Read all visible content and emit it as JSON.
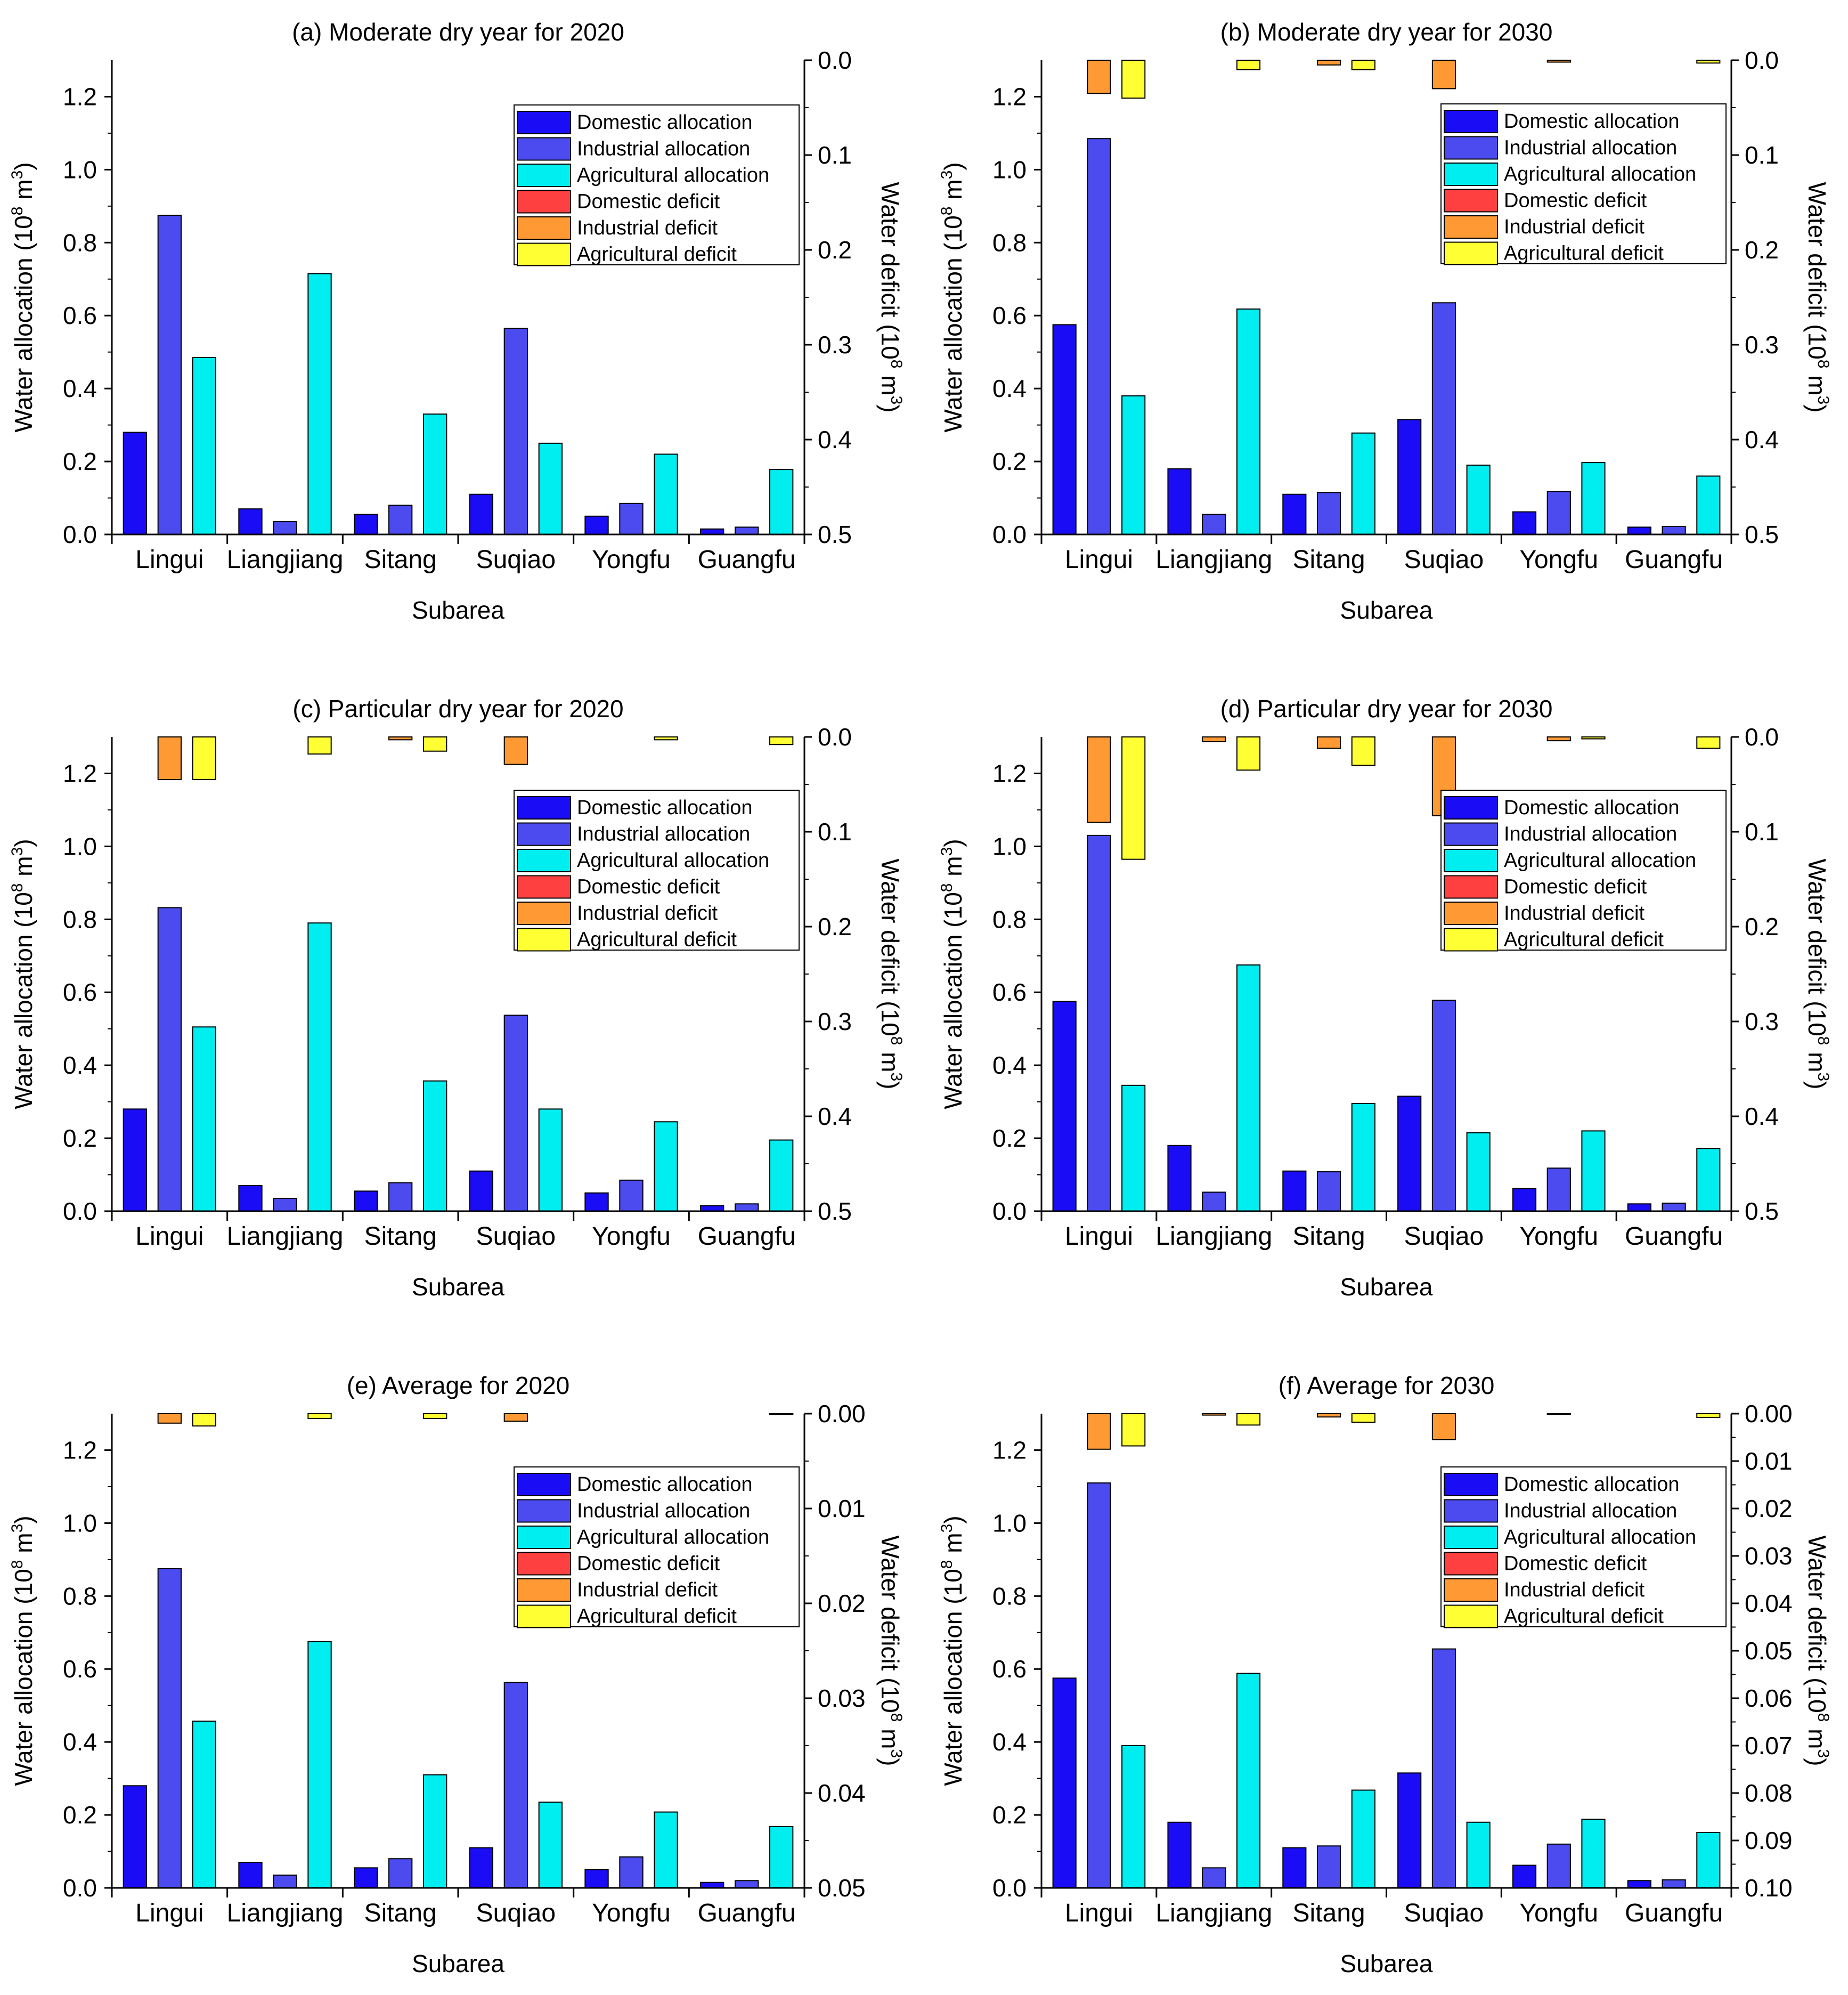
{
  "chart_data": [
    {
      "type": "bar",
      "panel": "a",
      "title": "(a) Moderate dry year for 2020",
      "xlabel": "Subarea",
      "ylabel": "Water allocation (10",
      "ylabel_sup": "8",
      "ylabel_end": " m",
      "ylabel_sup2": "3",
      "ylabel_close": ")",
      "y2label": "Water deficit (10",
      "y2label_sup": "8",
      "y2label_end": " m",
      "y2label_sup2": "3",
      "y2label_close": ")",
      "ylim": [
        0,
        1.3
      ],
      "yticks": [
        "0.0",
        "0.2",
        "0.4",
        "0.6",
        "0.8",
        "1.0",
        "1.2"
      ],
      "y2lim": [
        0,
        0.5
      ],
      "y2ticks": [
        "0.0",
        "0.1",
        "0.2",
        "0.3",
        "0.4",
        "0.5"
      ],
      "categories": [
        "Lingui",
        "Liangjiang",
        "Sitang",
        "Suqiao",
        "Yongfu",
        "Guangfu"
      ],
      "allocation_series": [
        {
          "name": "Domestic allocation",
          "color": "#1a0df5",
          "values": [
            0.28,
            0.07,
            0.055,
            0.11,
            0.05,
            0.015
          ]
        },
        {
          "name": "Industrial allocation",
          "color": "#4b4bf0",
          "values": [
            0.875,
            0.035,
            0.08,
            0.565,
            0.085,
            0.02
          ]
        },
        {
          "name": "Agricultural allocation",
          "color": "#00eef0",
          "values": [
            0.485,
            0.715,
            0.33,
            0.25,
            0.22,
            0.178
          ]
        }
      ],
      "deficit_series": [
        {
          "name": "Domestic deficit",
          "color": "#ff4040",
          "values": [
            0,
            0,
            0,
            0,
            0,
            0
          ]
        },
        {
          "name": "Industrial deficit",
          "color": "#ff9933",
          "values": [
            0,
            0,
            0,
            0,
            0,
            0
          ]
        },
        {
          "name": "Agricultural deficit",
          "color": "#ffff33",
          "values": [
            0,
            0,
            0,
            0,
            0,
            0
          ]
        }
      ],
      "legend_location": "top-right"
    },
    {
      "type": "bar",
      "panel": "b",
      "title": "(b) Moderate dry year for 2030",
      "xlabel": "Subarea",
      "ylabel": "Water allocation (10",
      "ylabel_sup": "8",
      "ylabel_end": " m",
      "ylabel_sup2": "3",
      "ylabel_close": ")",
      "y2label": "Water deficit (10",
      "y2label_sup": "8",
      "y2label_end": " m",
      "y2label_sup2": "3",
      "y2label_close": ")",
      "ylim": [
        0,
        1.3
      ],
      "yticks": [
        "0.0",
        "0.2",
        "0.4",
        "0.6",
        "0.8",
        "1.0",
        "1.2"
      ],
      "y2lim": [
        0,
        0.5
      ],
      "y2ticks": [
        "0.0",
        "0.1",
        "0.2",
        "0.3",
        "0.4",
        "0.5"
      ],
      "categories": [
        "Lingui",
        "Liangjiang",
        "Sitang",
        "Suqiao",
        "Yongfu",
        "Guangfu"
      ],
      "allocation_series": [
        {
          "name": "Domestic allocation",
          "color": "#1a0df5",
          "values": [
            0.575,
            0.18,
            0.11,
            0.315,
            0.062,
            0.02
          ]
        },
        {
          "name": "Industrial allocation",
          "color": "#4b4bf0",
          "values": [
            1.085,
            0.055,
            0.115,
            0.635,
            0.118,
            0.022
          ]
        },
        {
          "name": "Agricultural allocation",
          "color": "#00eef0",
          "values": [
            0.38,
            0.618,
            0.278,
            0.19,
            0.197,
            0.16
          ]
        }
      ],
      "deficit_series": [
        {
          "name": "Domestic deficit",
          "color": "#ff4040",
          "values": [
            0,
            0,
            0,
            0,
            0,
            0
          ]
        },
        {
          "name": "Industrial deficit",
          "color": "#ff9933",
          "values": [
            0.035,
            0,
            0.005,
            0.03,
            0.002,
            0
          ]
        },
        {
          "name": "Agricultural deficit",
          "color": "#ffff33",
          "values": [
            0.04,
            0.01,
            0.01,
            0,
            0,
            0.003
          ]
        }
      ],
      "legend_location": "top-right"
    },
    {
      "type": "bar",
      "panel": "c",
      "title": "(c) Particular dry year for 2020",
      "xlabel": "Subarea",
      "ylabel": "Water allocation (10",
      "ylabel_sup": "8",
      "ylabel_end": " m",
      "ylabel_sup2": "3",
      "ylabel_close": ")",
      "y2label": "Water deficit (10",
      "y2label_sup": "8",
      "y2label_end": " m",
      "y2label_sup2": "3",
      "y2label_close": ")",
      "ylim": [
        0,
        1.3
      ],
      "yticks": [
        "0.0",
        "0.2",
        "0.4",
        "0.6",
        "0.8",
        "1.0",
        "1.2"
      ],
      "y2lim": [
        0,
        0.5
      ],
      "y2ticks": [
        "0.0",
        "0.1",
        "0.2",
        "0.3",
        "0.4",
        "0.5"
      ],
      "categories": [
        "Lingui",
        "Liangjiang",
        "Sitang",
        "Suqiao",
        "Yongfu",
        "Guangfu"
      ],
      "allocation_series": [
        {
          "name": "Domestic allocation",
          "color": "#1a0df5",
          "values": [
            0.28,
            0.07,
            0.055,
            0.11,
            0.05,
            0.015
          ]
        },
        {
          "name": "Industrial allocation",
          "color": "#4b4bf0",
          "values": [
            0.832,
            0.035,
            0.078,
            0.537,
            0.085,
            0.02
          ]
        },
        {
          "name": "Agricultural allocation",
          "color": "#00eef0",
          "values": [
            0.505,
            0.79,
            0.357,
            0.28,
            0.245,
            0.195
          ]
        }
      ],
      "deficit_series": [
        {
          "name": "Domestic deficit",
          "color": "#ff4040",
          "values": [
            0,
            0,
            0,
            0,
            0,
            0
          ]
        },
        {
          "name": "Industrial deficit",
          "color": "#ff9933",
          "values": [
            0.045,
            0,
            0.003,
            0.029,
            0,
            0
          ]
        },
        {
          "name": "Agricultural deficit",
          "color": "#ffff33",
          "values": [
            0.045,
            0.018,
            0.015,
            0,
            0.003,
            0.008
          ]
        }
      ],
      "legend_location": "top-right"
    },
    {
      "type": "bar",
      "panel": "d",
      "title": "(d) Particular dry year for 2030",
      "xlabel": "Subarea",
      "ylabel": "Water allocation (10",
      "ylabel_sup": "8",
      "ylabel_end": " m",
      "ylabel_sup2": "3",
      "ylabel_close": ")",
      "y2label": "Water deficit (10",
      "y2label_sup": "8",
      "y2label_end": " m",
      "y2label_sup2": "3",
      "y2label_close": ")",
      "ylim": [
        0,
        1.3
      ],
      "yticks": [
        "0.0",
        "0.2",
        "0.4",
        "0.6",
        "0.8",
        "1.0",
        "1.2"
      ],
      "y2lim": [
        0,
        0.5
      ],
      "y2ticks": [
        "0.0",
        "0.1",
        "0.2",
        "0.3",
        "0.4",
        "0.5"
      ],
      "categories": [
        "Lingui",
        "Liangjiang",
        "Sitang",
        "Suqiao",
        "Yongfu",
        "Guangfu"
      ],
      "allocation_series": [
        {
          "name": "Domestic allocation",
          "color": "#1a0df5",
          "values": [
            0.575,
            0.18,
            0.11,
            0.315,
            0.062,
            0.02
          ]
        },
        {
          "name": "Industrial allocation",
          "color": "#4b4bf0",
          "values": [
            1.03,
            0.052,
            0.108,
            0.578,
            0.118,
            0.022
          ]
        },
        {
          "name": "Agricultural allocation",
          "color": "#00eef0",
          "values": [
            0.345,
            0.675,
            0.295,
            0.215,
            0.22,
            0.172
          ]
        }
      ],
      "deficit_series": [
        {
          "name": "Domestic deficit",
          "color": "#ff4040",
          "values": [
            0,
            0,
            0,
            0,
            0,
            0
          ]
        },
        {
          "name": "Industrial deficit",
          "color": "#ff9933",
          "values": [
            0.09,
            0.005,
            0.012,
            0.083,
            0.004,
            0
          ]
        },
        {
          "name": "Agricultural deficit",
          "color": "#ffff33",
          "values": [
            0.129,
            0.035,
            0.03,
            0,
            0.002,
            0.012
          ]
        }
      ],
      "legend_location": "top-right"
    },
    {
      "type": "bar",
      "panel": "e",
      "title": "(e) Average for 2020",
      "xlabel": "Subarea",
      "ylabel": "Water allocation (10",
      "ylabel_sup": "8",
      "ylabel_end": " m",
      "ylabel_sup2": "3",
      "ylabel_close": ")",
      "y2label": "Water deficit (10",
      "y2label_sup": "8",
      "y2label_end": " m",
      "y2label_sup2": "3",
      "y2label_close": ")",
      "ylim": [
        0,
        1.3
      ],
      "yticks": [
        "0.0",
        "0.2",
        "0.4",
        "0.6",
        "0.8",
        "1.0",
        "1.2"
      ],
      "y2lim": [
        0,
        0.05
      ],
      "y2ticks": [
        "0.00",
        "0.01",
        "0.02",
        "0.03",
        "0.04",
        "0.05"
      ],
      "categories": [
        "Lingui",
        "Liangjiang",
        "Sitang",
        "Suqiao",
        "Yongfu",
        "Guangfu"
      ],
      "allocation_series": [
        {
          "name": "Domestic allocation",
          "color": "#1a0df5",
          "values": [
            0.28,
            0.07,
            0.055,
            0.11,
            0.05,
            0.015
          ]
        },
        {
          "name": "Industrial allocation",
          "color": "#4b4bf0",
          "values": [
            0.875,
            0.035,
            0.08,
            0.563,
            0.085,
            0.02
          ]
        },
        {
          "name": "Agricultural allocation",
          "color": "#00eef0",
          "values": [
            0.457,
            0.675,
            0.31,
            0.235,
            0.208,
            0.168
          ]
        }
      ],
      "deficit_series": [
        {
          "name": "Domestic deficit",
          "color": "#ff4040",
          "values": [
            0,
            0,
            0,
            0,
            0,
            0
          ]
        },
        {
          "name": "Industrial deficit",
          "color": "#ff9933",
          "values": [
            0.001,
            0,
            0,
            0.0008,
            0,
            0
          ]
        },
        {
          "name": "Agricultural deficit",
          "color": "#ffff33",
          "values": [
            0.0013,
            0.0005,
            0.0005,
            0,
            0,
            0.0001
          ]
        }
      ],
      "legend_location": "top-right"
    },
    {
      "type": "bar",
      "panel": "f",
      "title": "(f) Average for 2030",
      "xlabel": "Subarea",
      "ylabel": "Water allocation (10",
      "ylabel_sup": "8",
      "ylabel_end": " m",
      "ylabel_sup2": "3",
      "ylabel_close": ")",
      "y2label": "Water deficit (10",
      "y2label_sup": "8",
      "y2label_end": " m",
      "y2label_sup2": "3",
      "y2label_close": ")",
      "ylim": [
        0,
        1.3
      ],
      "yticks": [
        "0.0",
        "0.2",
        "0.4",
        "0.6",
        "0.8",
        "1.0",
        "1.2"
      ],
      "y2lim": [
        0,
        0.1
      ],
      "y2ticks": [
        "0.00",
        "0.01",
        "0.02",
        "0.03",
        "0.04",
        "0.05",
        "0.06",
        "0.07",
        "0.08",
        "0.09",
        "0.10"
      ],
      "categories": [
        "Lingui",
        "Liangjiang",
        "Sitang",
        "Suqiao",
        "Yongfu",
        "Guangfu"
      ],
      "allocation_series": [
        {
          "name": "Domestic allocation",
          "color": "#1a0df5",
          "values": [
            0.575,
            0.18,
            0.11,
            0.315,
            0.062,
            0.02
          ]
        },
        {
          "name": "Industrial allocation",
          "color": "#4b4bf0",
          "values": [
            1.11,
            0.055,
            0.115,
            0.655,
            0.12,
            0.022
          ]
        },
        {
          "name": "Agricultural allocation",
          "color": "#00eef0",
          "values": [
            0.39,
            0.588,
            0.268,
            0.18,
            0.188,
            0.152
          ]
        }
      ],
      "deficit_series": [
        {
          "name": "Domestic deficit",
          "color": "#ff4040",
          "values": [
            0,
            0,
            0,
            0,
            0,
            0
          ]
        },
        {
          "name": "Industrial deficit",
          "color": "#ff9933",
          "values": [
            0.0075,
            0.0003,
            0.0007,
            0.0055,
            0.0002,
            0
          ]
        },
        {
          "name": "Agricultural deficit",
          "color": "#ffff33",
          "values": [
            0.0068,
            0.0024,
            0.0018,
            0,
            0,
            0.0008
          ]
        }
      ],
      "legend_location": "top-right"
    }
  ]
}
